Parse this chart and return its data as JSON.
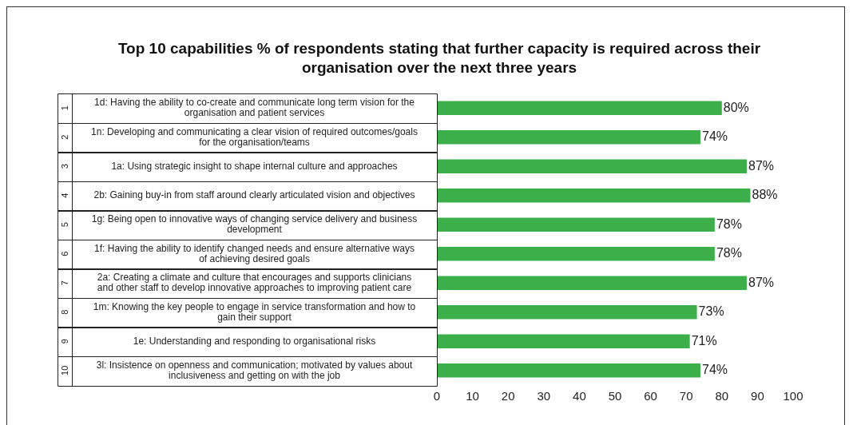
{
  "chart_data": {
    "type": "bar",
    "orientation": "horizontal",
    "title": "Top 10 capabilities % of respondents stating that further capacity is required across their organisation over the next three years",
    "categories": [
      "1d: Having the ability to co-create and communicate long term vision for the organisation and patient services",
      "1n: Developing and communicating a clear vision of required outcomes/goals for the organisation/teams",
      "1a: Using strategic insight to shape internal culture and approaches",
      "2b: Gaining buy-in from staff around clearly articulated vision and objectives",
      "1g: Being open to innovative ways of changing service delivery and business development",
      "1f: Having the ability to identify changed needs and ensure alternative ways of achieving desired goals",
      "2a: Creating a climate and culture that encourages and supports clinicians and other staff to develop innovative approaches to improving patient care",
      "1m: Knowing the key people to engage in service transformation and how to gain their support",
      "1e: Understanding and responding to organisational risks",
      "3l: Insistence on openness and communication; motivated by values about inclusiveness and getting on with the job"
    ],
    "values": [
      80,
      74,
      87,
      88,
      78,
      78,
      87,
      73,
      71,
      74
    ],
    "value_labels": [
      "80%",
      "74%",
      "87%",
      "88%",
      "78%",
      "78%",
      "87%",
      "73%",
      "71%",
      "74%"
    ],
    "annotations": [
      "1",
      "2",
      "3",
      "4",
      "5",
      "6",
      "7",
      "8",
      "9",
      "10"
    ],
    "color": "#3daf4a",
    "xlim": [
      0,
      100
    ],
    "xticks": [
      0,
      10,
      20,
      30,
      40,
      50,
      60,
      70,
      80,
      90,
      100
    ],
    "grid": false,
    "legend": false
  }
}
